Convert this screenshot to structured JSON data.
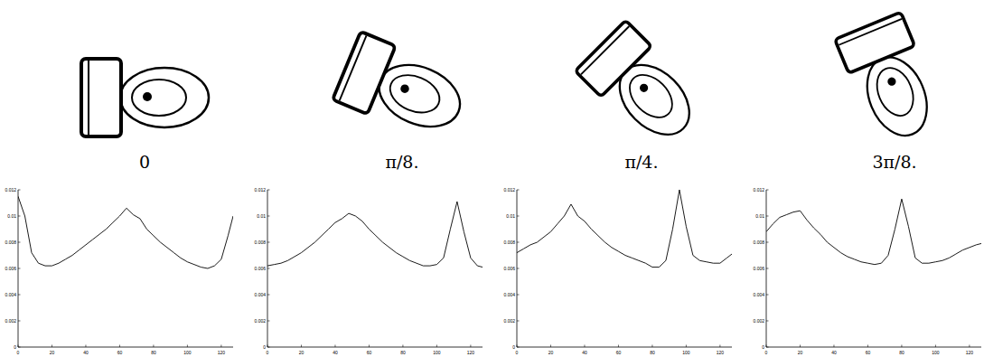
{
  "chart_data": [
    {
      "type": "line",
      "title": "0",
      "x": [
        0,
        4,
        8,
        12,
        16,
        20,
        24,
        28,
        32,
        36,
        40,
        44,
        48,
        52,
        56,
        60,
        64,
        68,
        72,
        76,
        80,
        84,
        88,
        92,
        96,
        100,
        104,
        108,
        112,
        116,
        120,
        124,
        127
      ],
      "values": [
        0.0115,
        0.01,
        0.0072,
        0.0064,
        0.0062,
        0.0062,
        0.0064,
        0.0067,
        0.007,
        0.0074,
        0.0078,
        0.0082,
        0.0086,
        0.009,
        0.0095,
        0.01,
        0.0106,
        0.0101,
        0.0098,
        0.009,
        0.0085,
        0.008,
        0.0076,
        0.0072,
        0.0068,
        0.0065,
        0.0063,
        0.0061,
        0.006,
        0.0062,
        0.0067,
        0.0085,
        0.01
      ],
      "color": "#000000",
      "xlim": [
        0,
        127
      ],
      "ylim": [
        0,
        0.012
      ],
      "xticks": [
        0,
        20,
        40,
        60,
        80,
        100,
        120
      ],
      "yticks": [
        0,
        0.002,
        0.004,
        0.006,
        0.008,
        0.01,
        0.012
      ],
      "grid": false
    },
    {
      "type": "line",
      "title": "π/8.",
      "x": [
        0,
        4,
        8,
        12,
        16,
        20,
        24,
        28,
        32,
        36,
        40,
        44,
        48,
        52,
        56,
        60,
        64,
        68,
        72,
        76,
        80,
        84,
        88,
        92,
        96,
        100,
        104,
        108,
        112,
        116,
        120,
        124,
        127
      ],
      "values": [
        0.0062,
        0.0063,
        0.0064,
        0.0066,
        0.0069,
        0.0072,
        0.0076,
        0.008,
        0.0085,
        0.009,
        0.0095,
        0.0098,
        0.0102,
        0.01,
        0.0096,
        0.009,
        0.0085,
        0.008,
        0.0076,
        0.0072,
        0.0069,
        0.0066,
        0.0064,
        0.0062,
        0.0062,
        0.0063,
        0.0068,
        0.009,
        0.0111,
        0.0088,
        0.0068,
        0.0062,
        0.0061
      ],
      "color": "#000000",
      "xlim": [
        0,
        127
      ],
      "ylim": [
        0,
        0.012
      ],
      "xticks": [
        0,
        20,
        40,
        60,
        80,
        100,
        120
      ],
      "yticks": [
        0,
        0.002,
        0.004,
        0.006,
        0.008,
        0.01,
        0.012
      ],
      "grid": false
    },
    {
      "type": "line",
      "title": "π/4.",
      "x": [
        0,
        4,
        8,
        12,
        16,
        20,
        24,
        28,
        32,
        36,
        40,
        44,
        48,
        52,
        56,
        60,
        64,
        68,
        72,
        76,
        80,
        84,
        88,
        92,
        96,
        100,
        104,
        108,
        112,
        116,
        120,
        124,
        127
      ],
      "values": [
        0.0072,
        0.0075,
        0.0078,
        0.008,
        0.0084,
        0.0088,
        0.0094,
        0.01,
        0.0109,
        0.01,
        0.0096,
        0.009,
        0.0085,
        0.008,
        0.0076,
        0.0073,
        0.007,
        0.0068,
        0.0066,
        0.0064,
        0.0061,
        0.0061,
        0.0066,
        0.009,
        0.012,
        0.0092,
        0.007,
        0.0066,
        0.0065,
        0.0064,
        0.0064,
        0.0068,
        0.0071
      ],
      "color": "#000000",
      "xlim": [
        0,
        127
      ],
      "ylim": [
        0,
        0.012
      ],
      "xticks": [
        0,
        20,
        40,
        60,
        80,
        100,
        120
      ],
      "yticks": [
        0,
        0.002,
        0.004,
        0.006,
        0.008,
        0.01,
        0.012
      ],
      "grid": false
    },
    {
      "type": "line",
      "title": "3π/8.",
      "x": [
        0,
        4,
        8,
        12,
        16,
        20,
        24,
        28,
        32,
        36,
        40,
        44,
        48,
        52,
        56,
        60,
        64,
        68,
        72,
        76,
        80,
        84,
        88,
        92,
        96,
        100,
        104,
        108,
        112,
        116,
        120,
        124,
        127
      ],
      "values": [
        0.0088,
        0.0094,
        0.0099,
        0.0101,
        0.0103,
        0.0104,
        0.0097,
        0.0091,
        0.0086,
        0.008,
        0.0076,
        0.0072,
        0.0069,
        0.0067,
        0.0065,
        0.0064,
        0.0063,
        0.0064,
        0.007,
        0.009,
        0.0113,
        0.0092,
        0.0068,
        0.0064,
        0.0064,
        0.0065,
        0.0066,
        0.0068,
        0.0071,
        0.0074,
        0.0076,
        0.0078,
        0.0079
      ],
      "color": "#000000",
      "xlim": [
        0,
        127
      ],
      "ylim": [
        0,
        0.012
      ],
      "xticks": [
        0,
        20,
        40,
        60,
        80,
        100,
        120
      ],
      "yticks": [
        0,
        0.002,
        0.004,
        0.006,
        0.008,
        0.01,
        0.012
      ],
      "grid": false
    }
  ]
}
